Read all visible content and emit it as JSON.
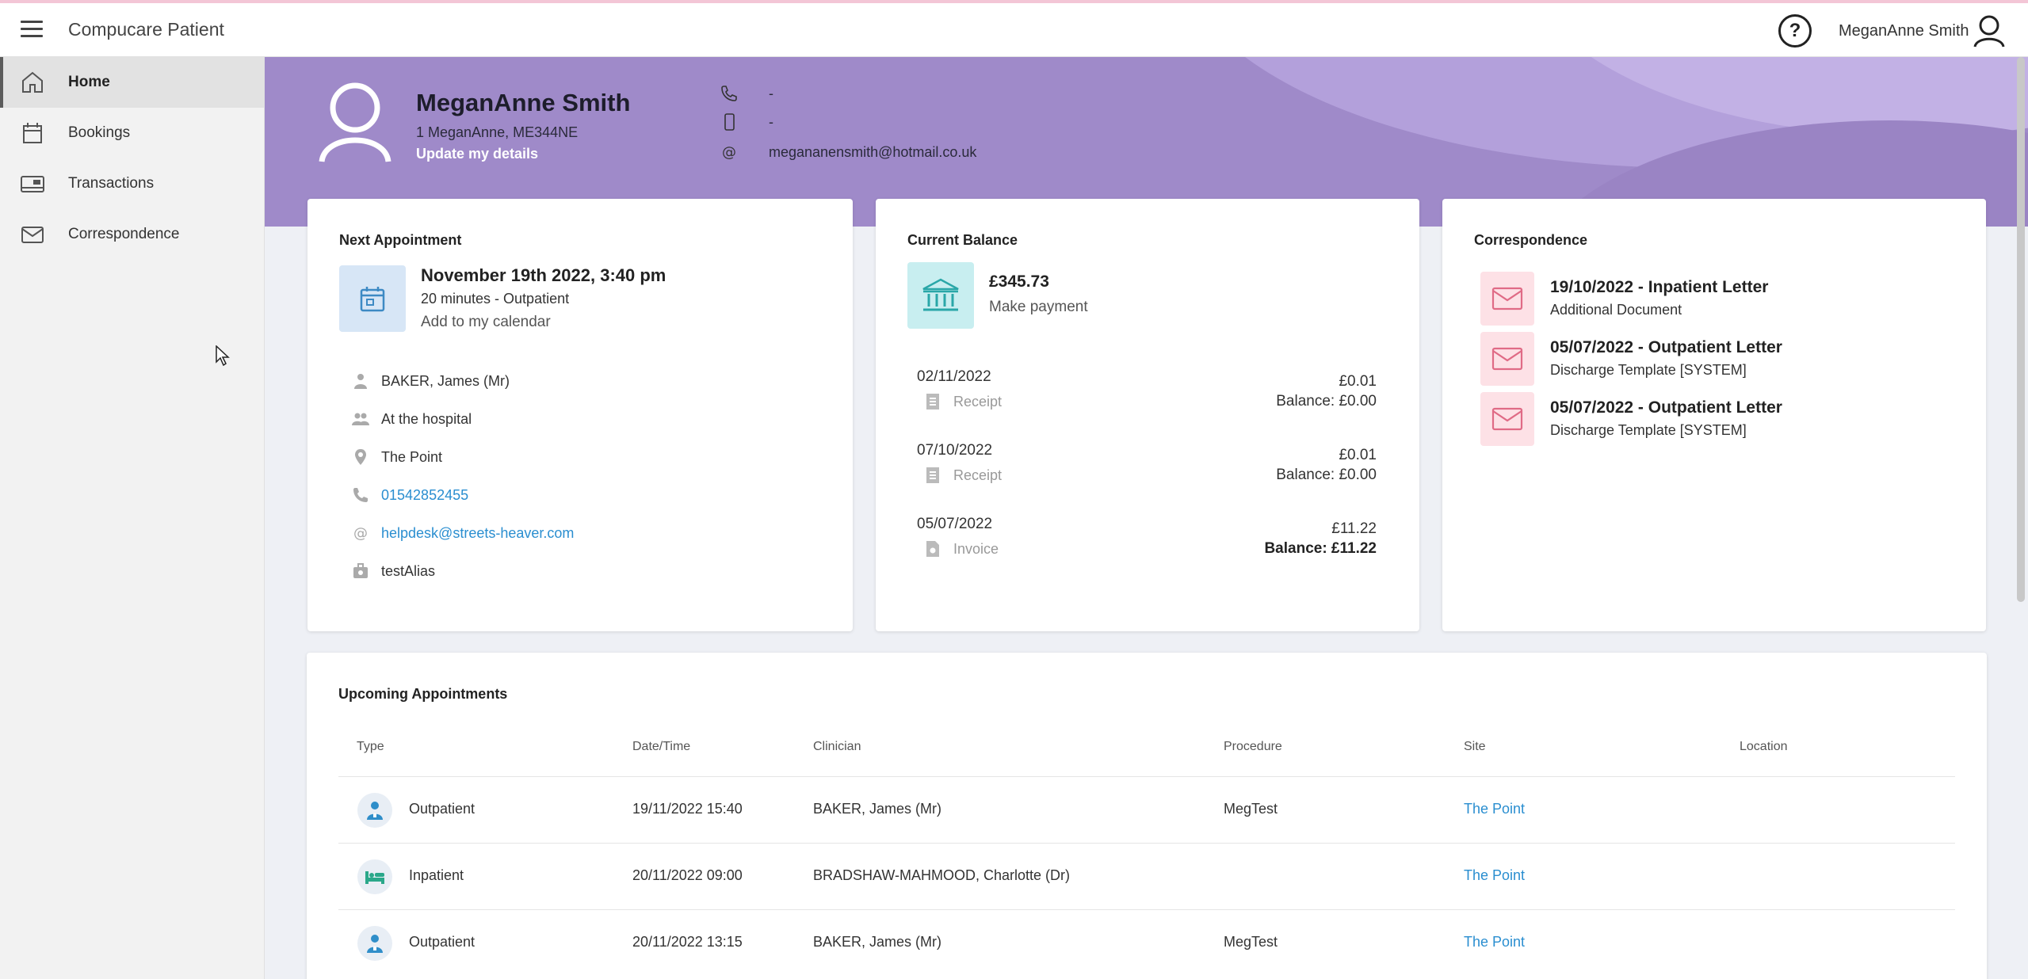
{
  "app": {
    "title": "Compucare Patient",
    "user_name": "MeganAnne Smith",
    "help_symbol": "?"
  },
  "sidebar": {
    "items": [
      {
        "label": "Home",
        "icon": "home-icon",
        "active": true
      },
      {
        "label": "Bookings",
        "icon": "calendar-icon"
      },
      {
        "label": "Transactions",
        "icon": "card-icon"
      },
      {
        "label": "Correspondence",
        "icon": "envelope-icon"
      }
    ]
  },
  "profile": {
    "name": "MeganAnne Smith",
    "address": "1 MeganAnne, ME344NE",
    "update_link": "Update my details",
    "phone": "-",
    "mobile": "-",
    "email": "megananensmith@hotmail.co.uk"
  },
  "next_appointment": {
    "title": "Next Appointment",
    "date": "November 19th 2022, 3:40 pm",
    "duration": "20 minutes - Outpatient",
    "calendar_link": "Add to my calendar",
    "clinician": "BAKER, James (Mr)",
    "mode": "At the hospital",
    "site": "The Point",
    "phone": "01542852455",
    "email": "helpdesk@streets-heaver.com",
    "alias": "testAlias"
  },
  "balance": {
    "title": "Current Balance",
    "amount": "£345.73",
    "pay_link": "Make payment",
    "transactions": [
      {
        "date": "02/11/2022",
        "type": "Receipt",
        "amount": "£0.01",
        "balance": "Balance: £0.00",
        "bold": false
      },
      {
        "date": "07/10/2022",
        "type": "Receipt",
        "amount": "£0.01",
        "balance": "Balance: £0.00",
        "bold": false
      },
      {
        "date": "05/07/2022",
        "type": "Invoice",
        "amount": "£11.22",
        "balance": "Balance: £11.22",
        "bold": true
      }
    ]
  },
  "correspondence": {
    "title": "Correspondence",
    "items": [
      {
        "title": "19/10/2022 - Inpatient Letter",
        "subtitle": "Additional Document"
      },
      {
        "title": "05/07/2022 - Outpatient Letter",
        "subtitle": "Discharge Template [SYSTEM]"
      },
      {
        "title": "05/07/2022 - Outpatient Letter",
        "subtitle": "Discharge Template [SYSTEM]"
      }
    ]
  },
  "upcoming": {
    "title": "Upcoming Appointments",
    "columns": [
      "Type",
      "Date/Time",
      "Clinician",
      "Procedure",
      "Site",
      "Location"
    ],
    "rows": [
      {
        "type": "Outpatient",
        "icon": "outpatient-icon",
        "datetime": "19/11/2022 15:40",
        "clinician": "BAKER, James (Mr)",
        "procedure": "MegTest",
        "site": "The Point",
        "location": ""
      },
      {
        "type": "Inpatient",
        "icon": "bed-icon",
        "datetime": "20/11/2022 09:00",
        "clinician": "BRADSHAW-MAHMOOD, Charlotte (Dr)",
        "procedure": "",
        "site": "The Point",
        "location": ""
      },
      {
        "type": "Outpatient",
        "icon": "outpatient-icon",
        "datetime": "20/11/2022 13:15",
        "clinician": "BAKER, James (Mr)",
        "procedure": "MegTest",
        "site": "The Point",
        "location": ""
      }
    ]
  },
  "colors": {
    "banner": "#9f8ac9",
    "link": "#2a8ed0",
    "accent_pink": "#fde1e6",
    "accent_teal": "#c8eef0",
    "accent_blue": "#d7e6f6"
  }
}
